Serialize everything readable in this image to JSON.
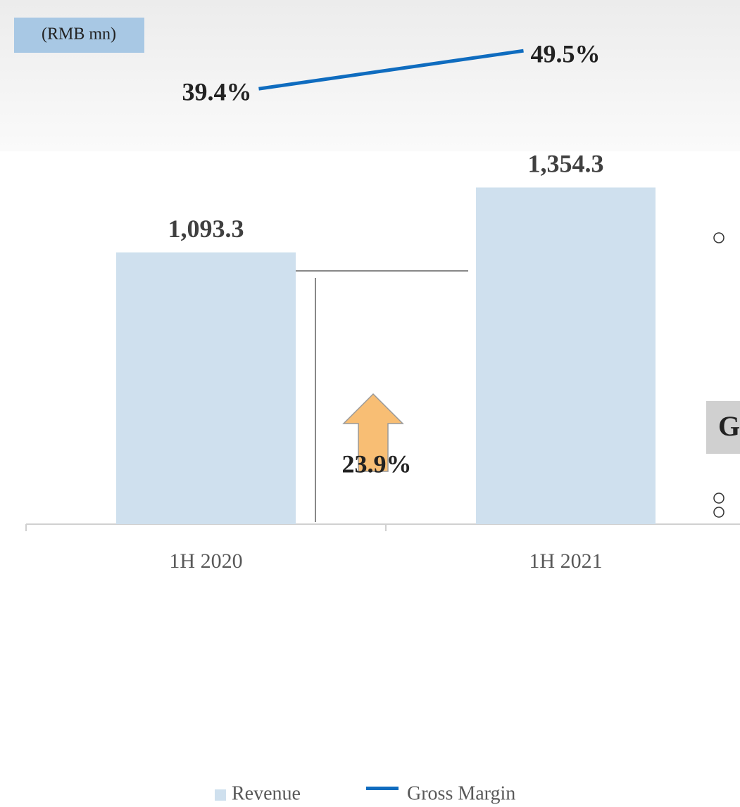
{
  "chart_data": {
    "type": "bar",
    "unit_label": "(RMB mn)",
    "categories": [
      "1H 2020",
      "1H 2021"
    ],
    "series": [
      {
        "name": "Revenue",
        "type": "bar",
        "color": "#cfe0ee",
        "values": [
          1093.3,
          1354.3
        ],
        "value_labels": [
          "1,093.3",
          "1,354.3"
        ]
      },
      {
        "name": "Gross Margin",
        "type": "line",
        "axis": "y2",
        "color": "#0f6cbf",
        "values": [
          39.4,
          49.5
        ],
        "value_labels": [
          "39.4%",
          "49.5%"
        ]
      }
    ],
    "ylim": [
      0,
      1500
    ],
    "y2lim": [
      0,
      60
    ],
    "growth_label": "23.9%",
    "side_text": "G"
  }
}
